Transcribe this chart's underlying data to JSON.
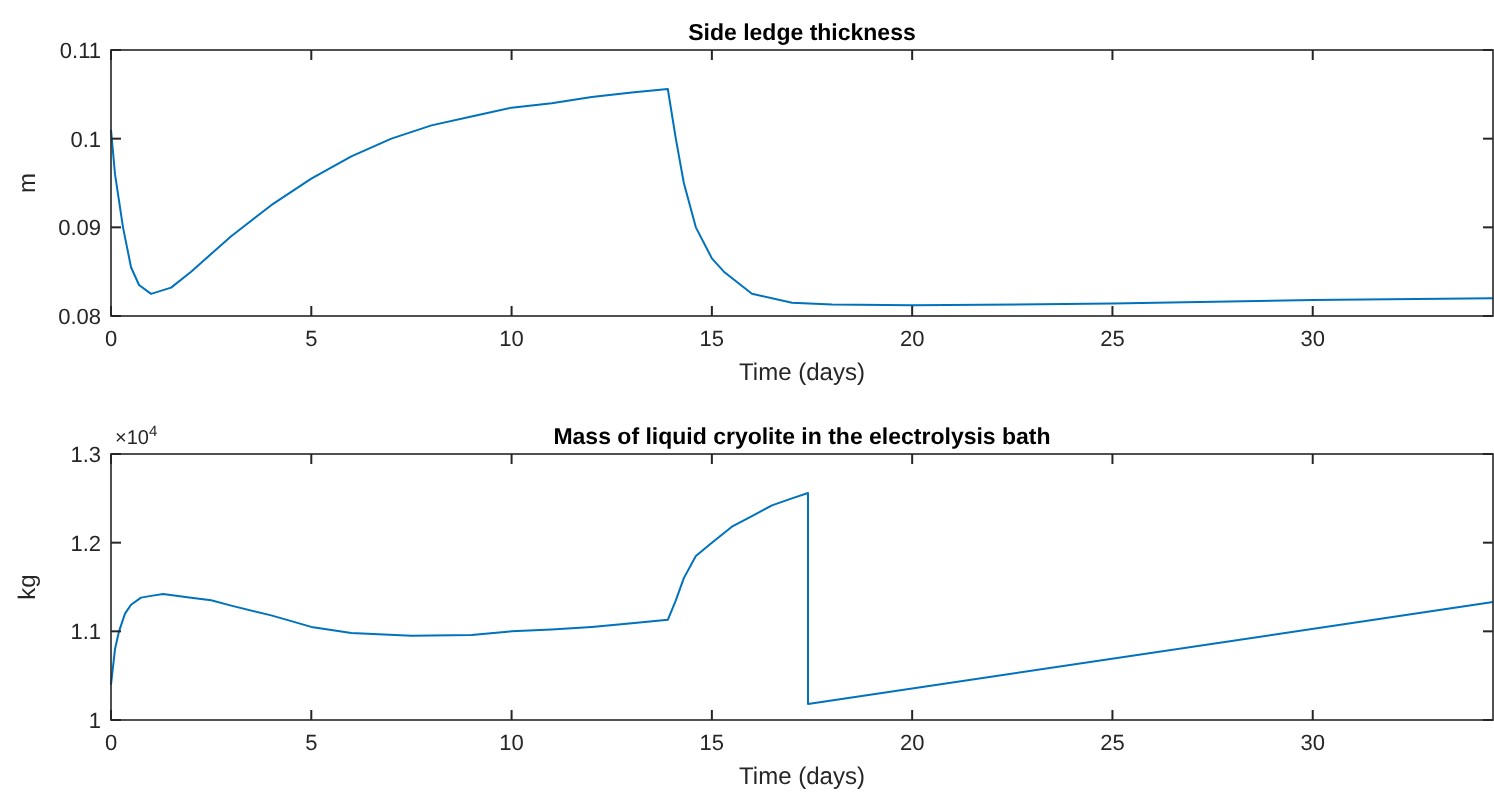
{
  "chart_data": [
    {
      "type": "line",
      "title": "Side ledge thickness",
      "xlabel": "Time (days)",
      "ylabel": "m",
      "xlim": [
        0,
        34.5
      ],
      "xticks": [
        0,
        5,
        10,
        15,
        20,
        25,
        30
      ],
      "ylim": [
        0.08,
        0.11
      ],
      "yticks": [
        0.08,
        0.09,
        {
          "value": 0.1,
          "label": "0.1"
        },
        0.11
      ],
      "grid": false,
      "series": [
        {
          "color": "#0072bd",
          "x": [
            0,
            0.1,
            0.3,
            0.5,
            0.7,
            1,
            1.5,
            2,
            3,
            4,
            5,
            6,
            7,
            8,
            9,
            10,
            11,
            12,
            13,
            13.9,
            14.1,
            14.3,
            14.6,
            15,
            15.3,
            16,
            17,
            18,
            20,
            25,
            30,
            34.5
          ],
          "values": [
            0.101,
            0.096,
            0.09,
            0.0855,
            0.0835,
            0.0825,
            0.0832,
            0.085,
            0.089,
            0.0925,
            0.0955,
            0.098,
            0.1,
            0.1015,
            0.1025,
            0.1035,
            0.104,
            0.1047,
            0.1052,
            0.1056,
            0.1,
            0.095,
            0.09,
            0.0865,
            0.085,
            0.0825,
            0.0815,
            0.0813,
            0.0812,
            0.0814,
            0.0818,
            0.082
          ]
        }
      ]
    },
    {
      "type": "line",
      "title": "Mass of liquid cryolite in the electrolysis bath",
      "xlabel": "Time (days)",
      "ylabel": "kg",
      "annotations": [
        "×10$^{4}$"
      ],
      "xlim": [
        0,
        34.5
      ],
      "xticks": [
        0,
        5,
        10,
        15,
        20,
        25,
        30
      ],
      "ylim": [
        1,
        1.3
      ],
      "yticks": [
        1,
        1.1,
        1.2,
        1.3
      ],
      "grid": false,
      "series": [
        {
          "color": "#0072bd",
          "x": [
            0,
            0.1,
            0.2,
            0.35,
            0.5,
            0.75,
            1,
            1.3,
            2,
            2.5,
            3,
            4,
            5,
            6,
            7.5,
            9,
            10,
            11,
            12,
            13,
            13.9,
            14.1,
            14.3,
            14.6,
            15,
            15.5,
            16,
            16.5,
            17,
            17.4,
            17.4,
            34.5
          ],
          "values": [
            1.04,
            1.08,
            1.1,
            1.12,
            1.13,
            1.138,
            1.14,
            1.142,
            1.138,
            1.135,
            1.129,
            1.118,
            1.105,
            1.098,
            1.095,
            1.096,
            1.1,
            1.102,
            1.105,
            1.109,
            1.113,
            1.135,
            1.16,
            1.185,
            1.2,
            1.218,
            1.23,
            1.242,
            1.25,
            1.256,
            1.018,
            1.133
          ]
        }
      ]
    }
  ]
}
